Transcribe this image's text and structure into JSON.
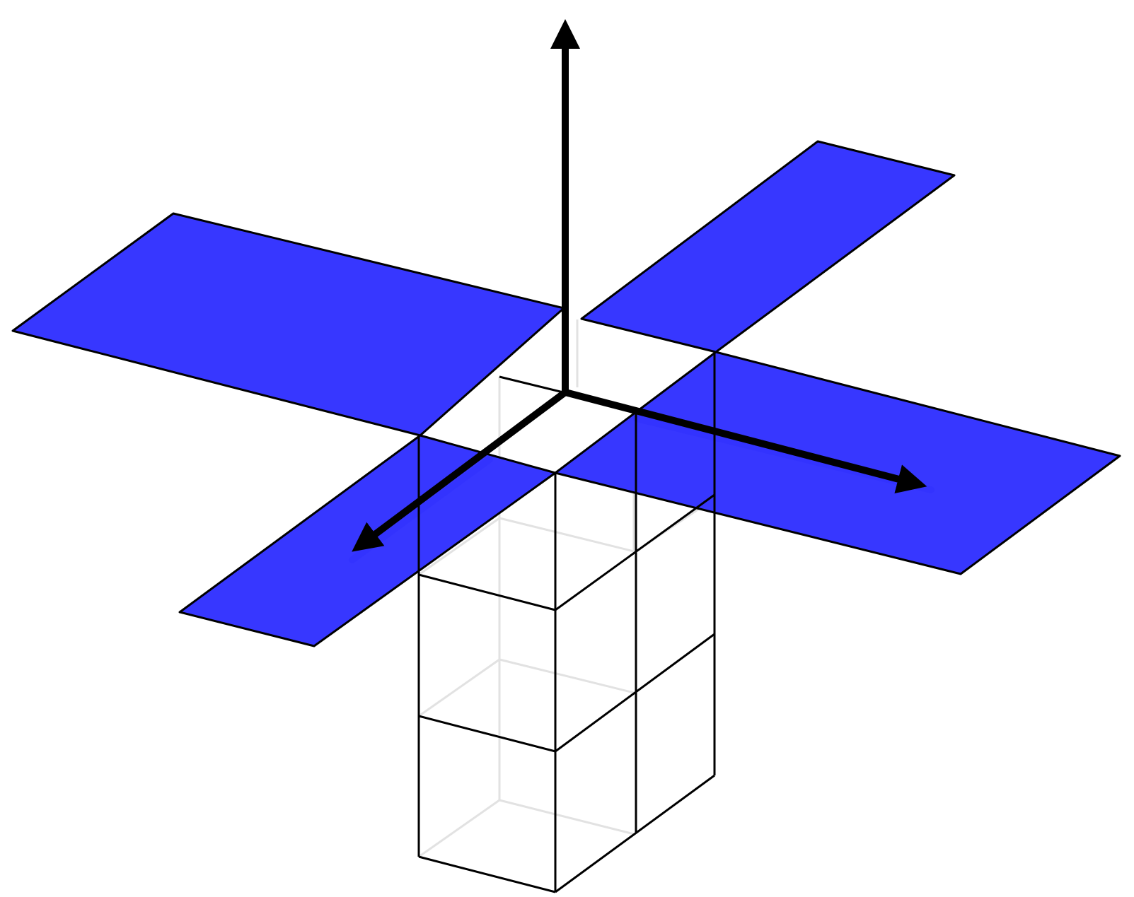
{
  "colors": {
    "plane_fill": "#3434ff",
    "plane_edge": "#000000",
    "box_edge": "#000000",
    "hidden_edge": "#e2e2e2",
    "axis": "#000000",
    "axis_shadow": "#1010cc",
    "background": "#ffffff"
  },
  "icons": {
    "axis_head": "arrowhead-icon"
  }
}
